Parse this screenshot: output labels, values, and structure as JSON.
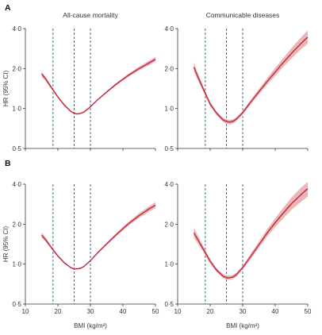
{
  "colors": {
    "curve": "#c0273a",
    "band": "#e8a9ac",
    "ref_line": "#2f6468",
    "axis": "#333333"
  },
  "chart_data": [
    {
      "type": "line",
      "panel": "A",
      "title": "All-cause mortality",
      "xlabel": "",
      "ylabel": "HR (95% CI)",
      "xlim": [
        10,
        50
      ],
      "ylim": [
        0.5,
        4.0
      ],
      "yscale": "log",
      "xticks": [
        10,
        20,
        30,
        40,
        50
      ],
      "yticks": [
        0.5,
        1.0,
        2.0,
        4.0
      ],
      "ytick_labels": [
        "0·5",
        "1·0",
        "2·0",
        "4·0"
      ],
      "ref_lines_x": [
        18.5,
        25,
        30
      ],
      "grid": false,
      "series": [
        {
          "x": [
            15,
            16,
            18,
            20,
            22,
            24,
            25,
            26,
            27,
            28,
            30,
            32,
            35,
            38,
            40,
            42,
            45,
            48,
            50
          ],
          "y": [
            1.82,
            1.7,
            1.44,
            1.22,
            1.06,
            0.95,
            0.92,
            0.91,
            0.92,
            0.94,
            1.03,
            1.15,
            1.33,
            1.53,
            1.66,
            1.8,
            2.0,
            2.2,
            2.35
          ],
          "lower": [
            1.74,
            1.64,
            1.4,
            1.2,
            1.04,
            0.94,
            0.91,
            0.9,
            0.91,
            0.93,
            1.02,
            1.14,
            1.31,
            1.5,
            1.62,
            1.75,
            1.94,
            2.12,
            2.26
          ],
          "upper": [
            1.9,
            1.76,
            1.48,
            1.24,
            1.08,
            0.96,
            0.93,
            0.92,
            0.93,
            0.95,
            1.04,
            1.16,
            1.35,
            1.56,
            1.7,
            1.85,
            2.07,
            2.29,
            2.44
          ]
        }
      ]
    },
    {
      "type": "line",
      "panel": "",
      "title": "Communicable diseases",
      "xlabel": "",
      "ylabel": "",
      "xlim": [
        10,
        50
      ],
      "ylim": [
        0.5,
        4.0
      ],
      "yscale": "log",
      "xticks": [
        10,
        20,
        30,
        40,
        50
      ],
      "yticks": [
        0.5,
        1.0,
        2.0,
        4.0
      ],
      "ytick_labels": [
        "0·5",
        "1·0",
        "2·0",
        "4·0"
      ],
      "ref_lines_x": [
        18.5,
        25,
        30
      ],
      "grid": false,
      "series": [
        {
          "x": [
            15,
            16,
            18,
            20,
            22,
            24,
            25,
            26,
            27,
            28,
            30,
            32,
            35,
            38,
            40,
            42,
            45,
            48,
            50
          ],
          "y": [
            2.05,
            1.78,
            1.38,
            1.08,
            0.92,
            0.82,
            0.8,
            0.79,
            0.8,
            0.83,
            0.93,
            1.08,
            1.34,
            1.65,
            1.88,
            2.15,
            2.6,
            3.1,
            3.45
          ],
          "lower": [
            1.9,
            1.68,
            1.32,
            1.04,
            0.89,
            0.79,
            0.77,
            0.76,
            0.77,
            0.8,
            0.9,
            1.04,
            1.28,
            1.56,
            1.76,
            2.0,
            2.38,
            2.8,
            3.08
          ],
          "upper": [
            2.22,
            1.9,
            1.45,
            1.12,
            0.95,
            0.85,
            0.83,
            0.82,
            0.83,
            0.86,
            0.96,
            1.12,
            1.4,
            1.75,
            2.02,
            2.32,
            2.85,
            3.45,
            3.88
          ]
        }
      ]
    },
    {
      "type": "line",
      "panel": "B",
      "title": "",
      "xlabel": "BMI (kg/m²)",
      "ylabel": "HR (95% CI)",
      "xlim": [
        10,
        50
      ],
      "ylim": [
        0.5,
        4.0
      ],
      "yscale": "log",
      "xticks": [
        10,
        20,
        30,
        40,
        50
      ],
      "yticks": [
        0.5,
        1.0,
        2.0,
        4.0
      ],
      "ytick_labels": [
        "0·5",
        "1·0",
        "2·0",
        "4·0"
      ],
      "ref_lines_x": [
        18.5,
        25,
        30
      ],
      "grid": false,
      "series": [
        {
          "x": [
            15,
            16,
            18,
            20,
            22,
            24,
            25,
            26,
            27,
            28,
            30,
            32,
            35,
            38,
            40,
            42,
            45,
            48,
            50
          ],
          "y": [
            1.65,
            1.55,
            1.33,
            1.15,
            1.02,
            0.94,
            0.92,
            0.92,
            0.93,
            0.96,
            1.06,
            1.2,
            1.42,
            1.67,
            1.85,
            2.04,
            2.32,
            2.6,
            2.78
          ],
          "lower": [
            1.58,
            1.5,
            1.3,
            1.13,
            1.01,
            0.93,
            0.91,
            0.91,
            0.92,
            0.95,
            1.05,
            1.18,
            1.39,
            1.63,
            1.79,
            1.97,
            2.23,
            2.48,
            2.64
          ],
          "upper": [
            1.73,
            1.61,
            1.37,
            1.17,
            1.04,
            0.95,
            0.93,
            0.93,
            0.94,
            0.97,
            1.07,
            1.22,
            1.45,
            1.71,
            1.91,
            2.11,
            2.42,
            2.72,
            2.93
          ]
        }
      ]
    },
    {
      "type": "line",
      "panel": "",
      "title": "",
      "xlabel": "BMI (kg/m²)",
      "ylabel": "",
      "xlim": [
        10,
        50
      ],
      "ylim": [
        0.5,
        4.0
      ],
      "yscale": "log",
      "xticks": [
        10,
        20,
        30,
        40,
        50
      ],
      "yticks": [
        0.5,
        1.0,
        2.0,
        4.0
      ],
      "ytick_labels": [
        "0·5",
        "1·0",
        "2·0",
        "4·0"
      ],
      "ref_lines_x": [
        18.5,
        25,
        30
      ],
      "grid": false,
      "series": [
        {
          "x": [
            15,
            16,
            18,
            20,
            22,
            24,
            25,
            26,
            27,
            28,
            30,
            32,
            35,
            38,
            40,
            42,
            45,
            48,
            50
          ],
          "y": [
            1.72,
            1.56,
            1.28,
            1.05,
            0.9,
            0.81,
            0.79,
            0.79,
            0.8,
            0.83,
            0.94,
            1.1,
            1.4,
            1.78,
            2.05,
            2.35,
            2.85,
            3.35,
            3.7
          ],
          "lower": [
            1.57,
            1.45,
            1.22,
            1.01,
            0.87,
            0.78,
            0.76,
            0.76,
            0.77,
            0.8,
            0.91,
            1.06,
            1.33,
            1.67,
            1.9,
            2.15,
            2.56,
            2.96,
            3.22
          ],
          "upper": [
            1.89,
            1.68,
            1.35,
            1.09,
            0.93,
            0.84,
            0.82,
            0.82,
            0.83,
            0.86,
            0.97,
            1.15,
            1.48,
            1.9,
            2.21,
            2.57,
            3.17,
            3.78,
            4.15
          ]
        }
      ]
    }
  ]
}
